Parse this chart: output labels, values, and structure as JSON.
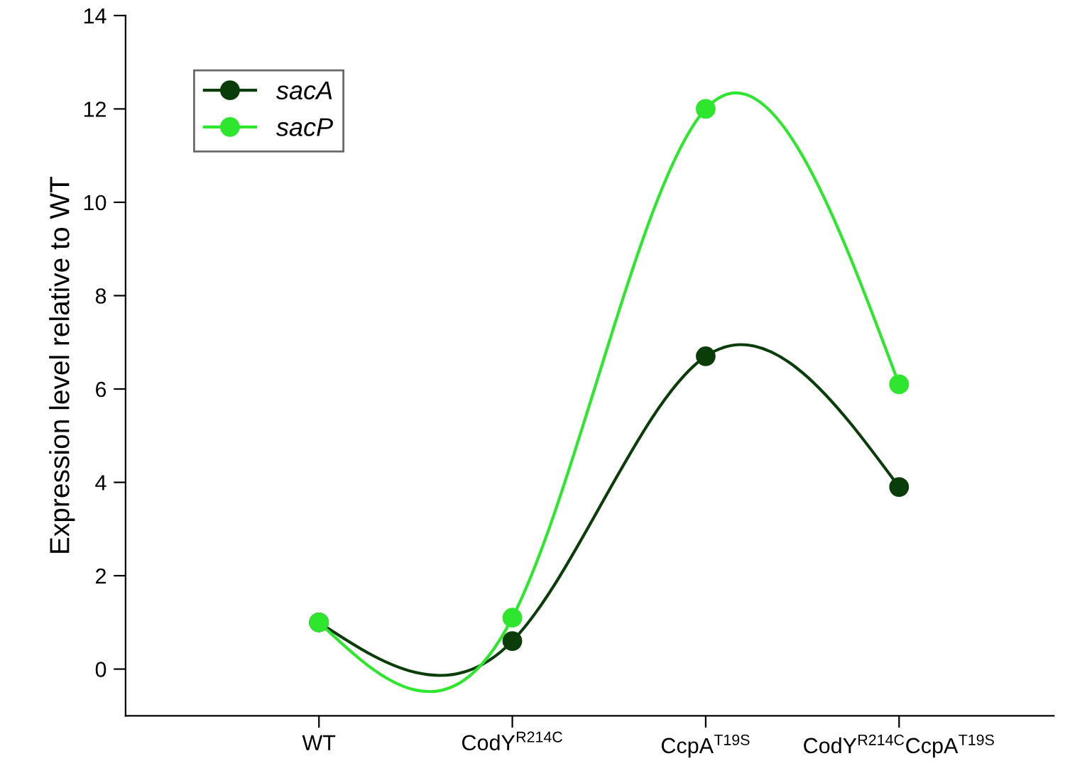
{
  "chart_data": {
    "type": "line",
    "ylabel": "Expression level relative to WT",
    "categories": [
      "WT",
      "CodY$^{R214C}$",
      "CcpA$^{T19S}$",
      "CodY$^{R214C}$CcpA$^{T19S}$"
    ],
    "series": [
      {
        "name": "sacA",
        "color": "#0b3d0b",
        "values": [
          1.0,
          0.6,
          6.7,
          3.9
        ]
      },
      {
        "name": "sacP",
        "color": "#2ee62e",
        "values": [
          1.0,
          1.1,
          12.0,
          6.1
        ]
      }
    ],
    "ylim": [
      -1,
      14
    ],
    "yticks": [
      0,
      2,
      4,
      6,
      8,
      10,
      12,
      14
    ],
    "grid": false,
    "legend": "top left",
    "marker": "circle",
    "line_style": "solid"
  }
}
